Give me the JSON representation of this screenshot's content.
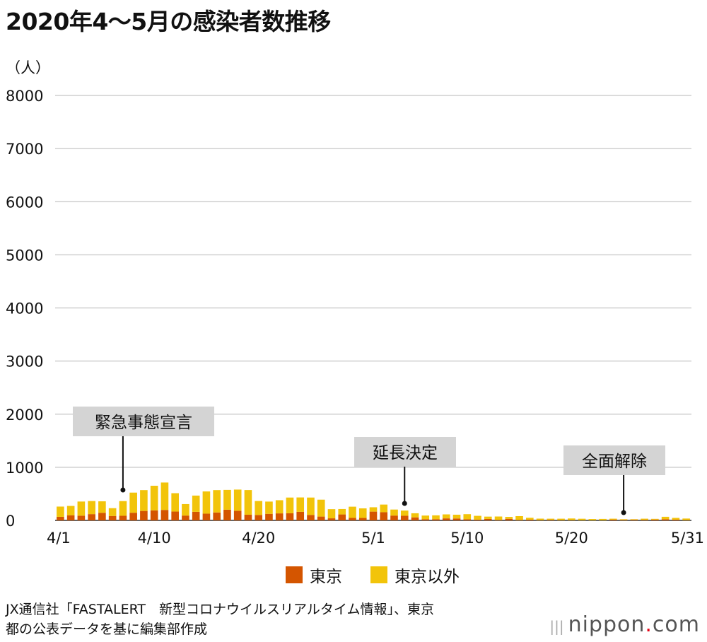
{
  "title": "2020年4〜5月の感染者数推移",
  "unit_label": "（人）",
  "legend": [
    {
      "label": "東京",
      "color": "#d45500"
    },
    {
      "label": "東京以外",
      "color": "#f2c40a"
    }
  ],
  "source_lines": [
    "JX通信社「FASTALERT　新型コロナウイルスリアルタイム情報」、東京",
    "都の公表データを基に編集部作成"
  ],
  "brand": {
    "name": "nippon",
    "dot": ".",
    "suffix": "com"
  },
  "chart_data": {
    "type": "bar",
    "stacked": true,
    "ylim": [
      0,
      8000
    ],
    "yticks": [
      0,
      1000,
      2000,
      3000,
      4000,
      5000,
      6000,
      7000,
      8000
    ],
    "xtick_labels": [
      "4/1",
      "4/10",
      "4/20",
      "5/1",
      "5/10",
      "5/20",
      "5/31"
    ],
    "xtick_indices": [
      0,
      9,
      19,
      30,
      39,
      49,
      60
    ],
    "grid": true,
    "categories": [
      "4/1",
      "4/2",
      "4/3",
      "4/4",
      "4/5",
      "4/6",
      "4/7",
      "4/8",
      "4/9",
      "4/10",
      "4/11",
      "4/12",
      "4/13",
      "4/14",
      "4/15",
      "4/16",
      "4/17",
      "4/18",
      "4/19",
      "4/20",
      "4/21",
      "4/22",
      "4/23",
      "4/24",
      "4/25",
      "4/26",
      "4/27",
      "4/28",
      "4/29",
      "4/30",
      "5/1",
      "5/2",
      "5/3",
      "5/4",
      "5/5",
      "5/6",
      "5/7",
      "5/8",
      "5/9",
      "5/10",
      "5/11",
      "5/12",
      "5/13",
      "5/14",
      "5/15",
      "5/16",
      "5/17",
      "5/18",
      "5/19",
      "5/20",
      "5/21",
      "5/22",
      "5/23",
      "5/24",
      "5/25",
      "5/26",
      "5/27",
      "5/28",
      "5/29",
      "5/30",
      "5/31"
    ],
    "series": [
      {
        "name": "東京",
        "color": "#d45500",
        "values": [
          67,
          97,
          89,
          118,
          143,
          83,
          87,
          144,
          178,
          189,
          197,
          166,
          91,
          161,
          127,
          149,
          201,
          181,
          107,
          102,
          123,
          132,
          134,
          161,
          103,
          72,
          39,
          112,
          47,
          46,
          165,
          154,
          91,
          87,
          57,
          23,
          23,
          38,
          36,
          22,
          15,
          28,
          10,
          30,
          9,
          14,
          5,
          10,
          5,
          5,
          3,
          2,
          2,
          14,
          8,
          11,
          10,
          15,
          22,
          14,
          5
        ]
      },
      {
        "name": "東京以外",
        "color": "#f2c40a",
        "values": [
          193,
          175,
          266,
          246,
          216,
          147,
          276,
          379,
          392,
          463,
          516,
          346,
          216,
          306,
          418,
          421,
          373,
          399,
          464,
          263,
          231,
          248,
          296,
          271,
          327,
          318,
          172,
          102,
          211,
          180,
          82,
          144,
          113,
          98,
          77,
          68,
          72,
          75,
          71,
          95,
          71,
          43,
          63,
          36,
          71,
          35,
          28,
          22,
          27,
          31,
          28,
          24,
          26,
          18,
          14,
          11,
          22,
          14,
          46,
          33,
          30
        ]
      }
    ],
    "annotations": [
      {
        "label": "緊急事態宣言",
        "x_index": 6
      },
      {
        "label": "延長決定",
        "x_index": 33
      },
      {
        "label": "全面解除",
        "x_index": 54
      }
    ]
  }
}
